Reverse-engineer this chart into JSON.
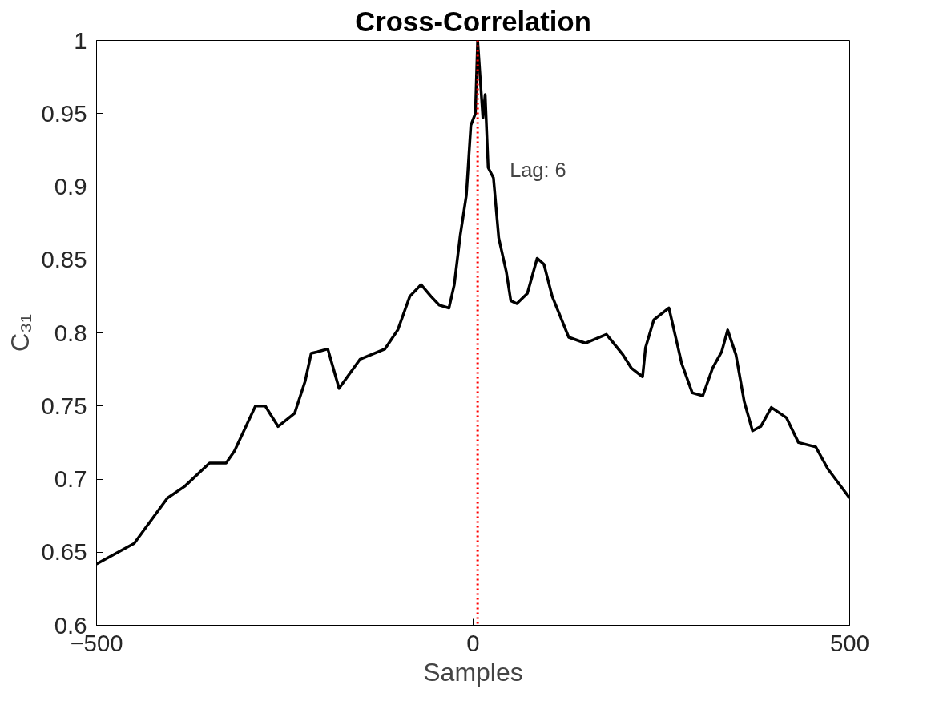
{
  "chart_data": {
    "type": "line",
    "title": "Cross-Correlation",
    "xlabel": "Samples",
    "ylabel": "C₃₁",
    "x": [
      -500,
      -450,
      -406,
      -383,
      -350,
      -328,
      -317,
      -289,
      -276,
      -259,
      -237,
      -223,
      -215,
      -207,
      -193,
      -178,
      -150,
      -117,
      -100,
      -84,
      -69,
      -56,
      -45,
      -32,
      -25,
      -17,
      -9,
      -3,
      3,
      6,
      13,
      16,
      20,
      27,
      34,
      44,
      50,
      58,
      72,
      85,
      94,
      105,
      127,
      149,
      177,
      199,
      210,
      225,
      229,
      240,
      260,
      277,
      291,
      305,
      318,
      330,
      338,
      349,
      360,
      371,
      382,
      396,
      416,
      432,
      455,
      471,
      500
    ],
    "series": [
      {
        "color": "#000000",
        "values": [
          0.642,
          0.656,
          0.687,
          0.695,
          0.711,
          0.711,
          0.719,
          0.75,
          0.75,
          0.736,
          0.745,
          0.767,
          0.786,
          0.787,
          0.789,
          0.762,
          0.782,
          0.789,
          0.802,
          0.825,
          0.833,
          0.825,
          0.819,
          0.817,
          0.833,
          0.867,
          0.894,
          0.942,
          0.95,
          1.0,
          0.947,
          0.963,
          0.913,
          0.906,
          0.865,
          0.842,
          0.822,
          0.82,
          0.827,
          0.851,
          0.847,
          0.825,
          0.797,
          0.793,
          0.799,
          0.785,
          0.776,
          0.77,
          0.79,
          0.809,
          0.817,
          0.779,
          0.759,
          0.757,
          0.776,
          0.787,
          0.802,
          0.785,
          0.753,
          0.733,
          0.736,
          0.749,
          0.742,
          0.725,
          0.722,
          0.707,
          0.687
        ]
      }
    ],
    "xlim": [
      -500,
      500
    ],
    "xticks": [
      -500,
      0,
      500
    ],
    "ylim": [
      0.6,
      1
    ],
    "yticks": [
      0.6,
      0.65,
      0.7,
      0.75,
      0.8,
      0.85,
      0.9,
      0.95,
      1
    ],
    "ref_lines": [
      {
        "axis": "x",
        "value": 6,
        "label": "Lag: 6",
        "color": "#ff0000",
        "line_style": "dotted"
      }
    ],
    "grid": false,
    "marker": "none",
    "line_style": "solid"
  }
}
